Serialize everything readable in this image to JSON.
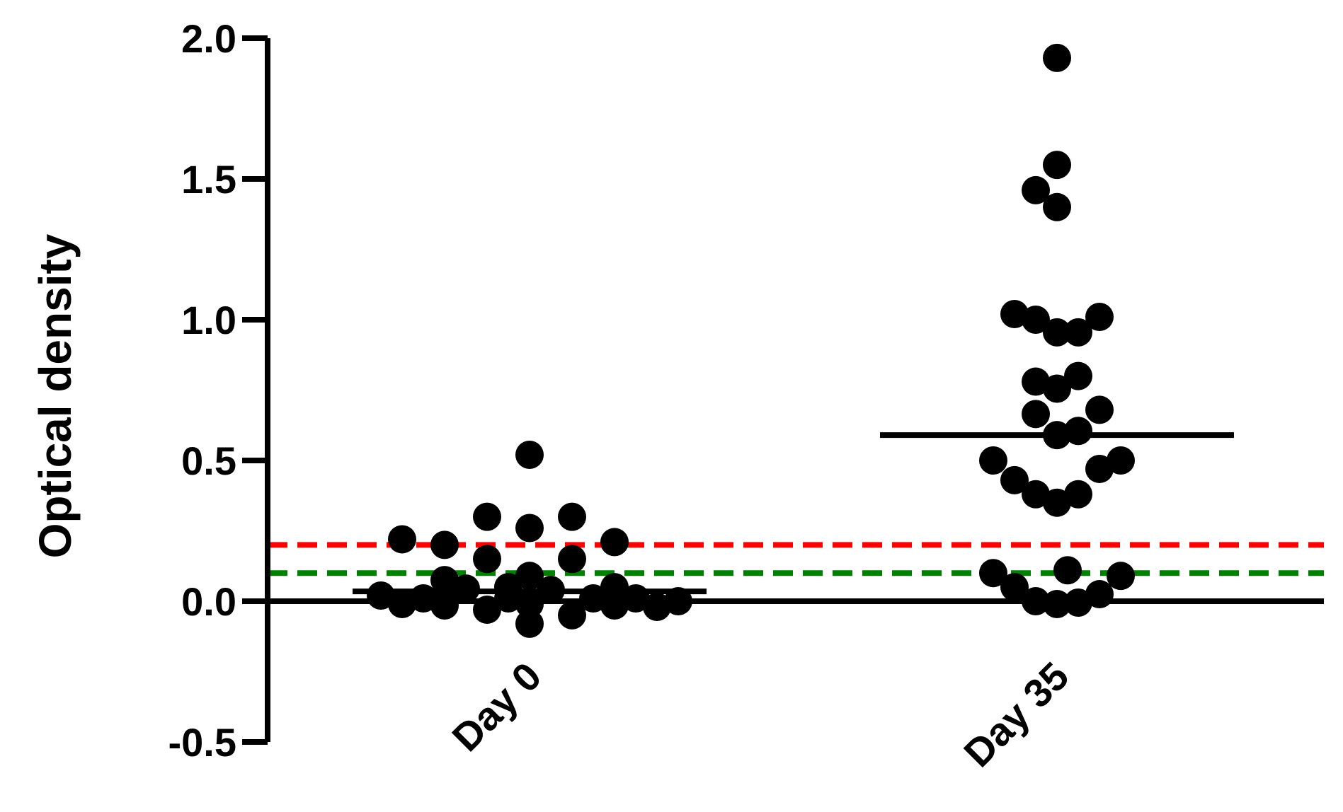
{
  "chart_data": {
    "type": "scatter",
    "title": "",
    "xlabel": "",
    "ylabel": "Optical density",
    "categories": [
      "Day 0",
      "Day 35"
    ],
    "ylim": [
      -0.5,
      2.0
    ],
    "yticks": [
      -0.5,
      0.0,
      0.5,
      1.0,
      1.5,
      2.0
    ],
    "ytick_labels": [
      "-0.5",
      "0.0",
      "0.5",
      "1.0",
      "1.5",
      "2.0"
    ],
    "grid": false,
    "legend": "none",
    "point_color": "#000000",
    "series": [
      {
        "category": "Day 0",
        "median": 0.035,
        "points": [
          {
            "offset": 0,
            "y": 0.52
          },
          {
            "offset": 2,
            "y": 0.3
          },
          {
            "offset": -2,
            "y": 0.3
          },
          {
            "offset": 0,
            "y": 0.26
          },
          {
            "offset": -6,
            "y": 0.22
          },
          {
            "offset": 4,
            "y": 0.21
          },
          {
            "offset": -4,
            "y": 0.2
          },
          {
            "offset": -2,
            "y": 0.15
          },
          {
            "offset": 2,
            "y": 0.15
          },
          {
            "offset": 0,
            "y": 0.09
          },
          {
            "offset": -4,
            "y": 0.075
          },
          {
            "offset": 4,
            "y": 0.05
          },
          {
            "offset": -1,
            "y": 0.05
          },
          {
            "offset": -3,
            "y": 0.045
          },
          {
            "offset": 1,
            "y": 0.04
          },
          {
            "offset": -7,
            "y": 0.02
          },
          {
            "offset": -5,
            "y": 0.01
          },
          {
            "offset": -1,
            "y": 0.01
          },
          {
            "offset": 3,
            "y": 0.01
          },
          {
            "offset": 5,
            "y": 0.01
          },
          {
            "offset": 7,
            "y": 0.0
          },
          {
            "offset": -6,
            "y": -0.01
          },
          {
            "offset": -4,
            "y": -0.015
          },
          {
            "offset": 0,
            "y": -0.01
          },
          {
            "offset": 4,
            "y": -0.015
          },
          {
            "offset": 6,
            "y": -0.02
          },
          {
            "offset": -2,
            "y": -0.03
          },
          {
            "offset": 2,
            "y": -0.05
          },
          {
            "offset": 0,
            "y": -0.08
          }
        ]
      },
      {
        "category": "Day 35",
        "median": 0.59,
        "points": [
          {
            "offset": 0,
            "y": 1.93
          },
          {
            "offset": 0,
            "y": 1.55
          },
          {
            "offset": -1,
            "y": 1.46
          },
          {
            "offset": 0,
            "y": 1.4
          },
          {
            "offset": -2,
            "y": 1.02
          },
          {
            "offset": 2,
            "y": 1.01
          },
          {
            "offset": -1,
            "y": 1.0
          },
          {
            "offset": 0,
            "y": 0.955
          },
          {
            "offset": 1,
            "y": 0.955
          },
          {
            "offset": 1,
            "y": 0.8
          },
          {
            "offset": -1,
            "y": 0.78
          },
          {
            "offset": 0,
            "y": 0.755
          },
          {
            "offset": 2,
            "y": 0.68
          },
          {
            "offset": -1,
            "y": 0.665
          },
          {
            "offset": 1,
            "y": 0.605
          },
          {
            "offset": 0,
            "y": 0.59
          },
          {
            "offset": -3,
            "y": 0.5
          },
          {
            "offset": 3,
            "y": 0.5
          },
          {
            "offset": 2,
            "y": 0.47
          },
          {
            "offset": -2,
            "y": 0.43
          },
          {
            "offset": -1,
            "y": 0.38
          },
          {
            "offset": 1,
            "y": 0.38
          },
          {
            "offset": 0,
            "y": 0.35
          },
          {
            "offset": 0.5,
            "y": 0.11
          },
          {
            "offset": -3,
            "y": 0.1
          },
          {
            "offset": 3,
            "y": 0.09
          },
          {
            "offset": -2,
            "y": 0.05
          },
          {
            "offset": 2,
            "y": 0.025
          },
          {
            "offset": -1,
            "y": 0.0
          },
          {
            "offset": 1,
            "y": -0.005
          },
          {
            "offset": 0,
            "y": -0.01
          }
        ]
      }
    ],
    "reference_lines": [
      {
        "y": 0.2,
        "color": "#ff0000",
        "style": "dashed"
      },
      {
        "y": 0.1,
        "color": "#008000",
        "style": "dashed"
      },
      {
        "y": 0.0,
        "color": "#000000",
        "style": "solid"
      }
    ]
  }
}
